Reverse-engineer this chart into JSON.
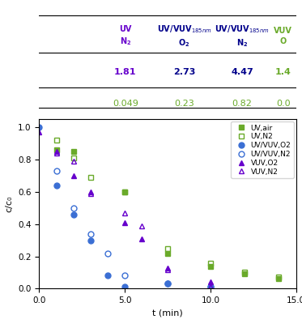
{
  "xlabel": "t (min)",
  "ylabel": "c/c₀",
  "xlim": [
    0,
    15.0
  ],
  "ylim": [
    0,
    1.05
  ],
  "xticks": [
    0.0,
    5.0,
    10.0,
    15.0
  ],
  "yticks": [
    0.0,
    0.2,
    0.4,
    0.6,
    0.8,
    1.0
  ],
  "table": {
    "col_labels": [
      "UV\nN₂",
      "UV/VUV₁₈₅nm\nO₂",
      "UV/VUV₁₈₅nm\nN₂",
      "VUV\nO"
    ],
    "row1_values": [
      "1.81",
      "2.73",
      "4.47",
      "1.4"
    ],
    "row2_values": [
      "0.049",
      "0.23",
      "0.82",
      "0.0"
    ],
    "row1_color": "#6600cc",
    "row2_color": "#6aaa2a"
  },
  "series": {
    "UV,air": {
      "x": [
        1,
        2,
        5,
        7.5,
        10,
        12,
        14
      ],
      "y": [
        0.86,
        0.85,
        0.6,
        0.22,
        0.14,
        0.09,
        0.06
      ],
      "color": "#6aaa2a",
      "marker": "s",
      "filled": true,
      "markersize": 5
    },
    "UV,N2": {
      "x": [
        1,
        2,
        3,
        5,
        7.5,
        10,
        12,
        14
      ],
      "y": [
        0.92,
        0.81,
        0.69,
        0.6,
        0.25,
        0.16,
        0.1,
        0.07
      ],
      "color": "#6aaa2a",
      "marker": "s",
      "filled": false,
      "markersize": 5
    },
    "UV/VUV,O2": {
      "x": [
        0,
        1,
        2,
        3,
        4,
        5,
        7.5,
        10
      ],
      "y": [
        1.0,
        0.64,
        0.46,
        0.3,
        0.08,
        0.01,
        0.03,
        0.01
      ],
      "color": "#3b6fd4",
      "marker": "o",
      "filled": true,
      "markersize": 5
    },
    "UV/VUV,N2": {
      "x": [
        1,
        2,
        3,
        4,
        5,
        7.5,
        10
      ],
      "y": [
        0.73,
        0.5,
        0.34,
        0.22,
        0.08,
        0.03,
        0.01
      ],
      "color": "#3b6fd4",
      "marker": "o",
      "filled": false,
      "markersize": 5
    },
    "VUV,O2": {
      "x": [
        0,
        1,
        2,
        3,
        5,
        6,
        7.5,
        10
      ],
      "y": [
        0.97,
        0.85,
        0.7,
        0.6,
        0.41,
        0.31,
        0.13,
        0.04
      ],
      "color": "#6600cc",
      "marker": "^",
      "filled": true,
      "markersize": 5
    },
    "VUV,N2": {
      "x": [
        1,
        2,
        3,
        5,
        6,
        7.5,
        10
      ],
      "y": [
        0.84,
        0.79,
        0.59,
        0.47,
        0.39,
        0.12,
        0.01
      ],
      "color": "#6600cc",
      "marker": "^",
      "filled": false,
      "markersize": 5
    }
  },
  "legend_labels": [
    "UV,air",
    "UV,N2",
    "UV/VUV,O2",
    "UV/VUV,N2",
    "VUV,O2",
    "VUV,N2"
  ],
  "background_color": "#ffffff"
}
